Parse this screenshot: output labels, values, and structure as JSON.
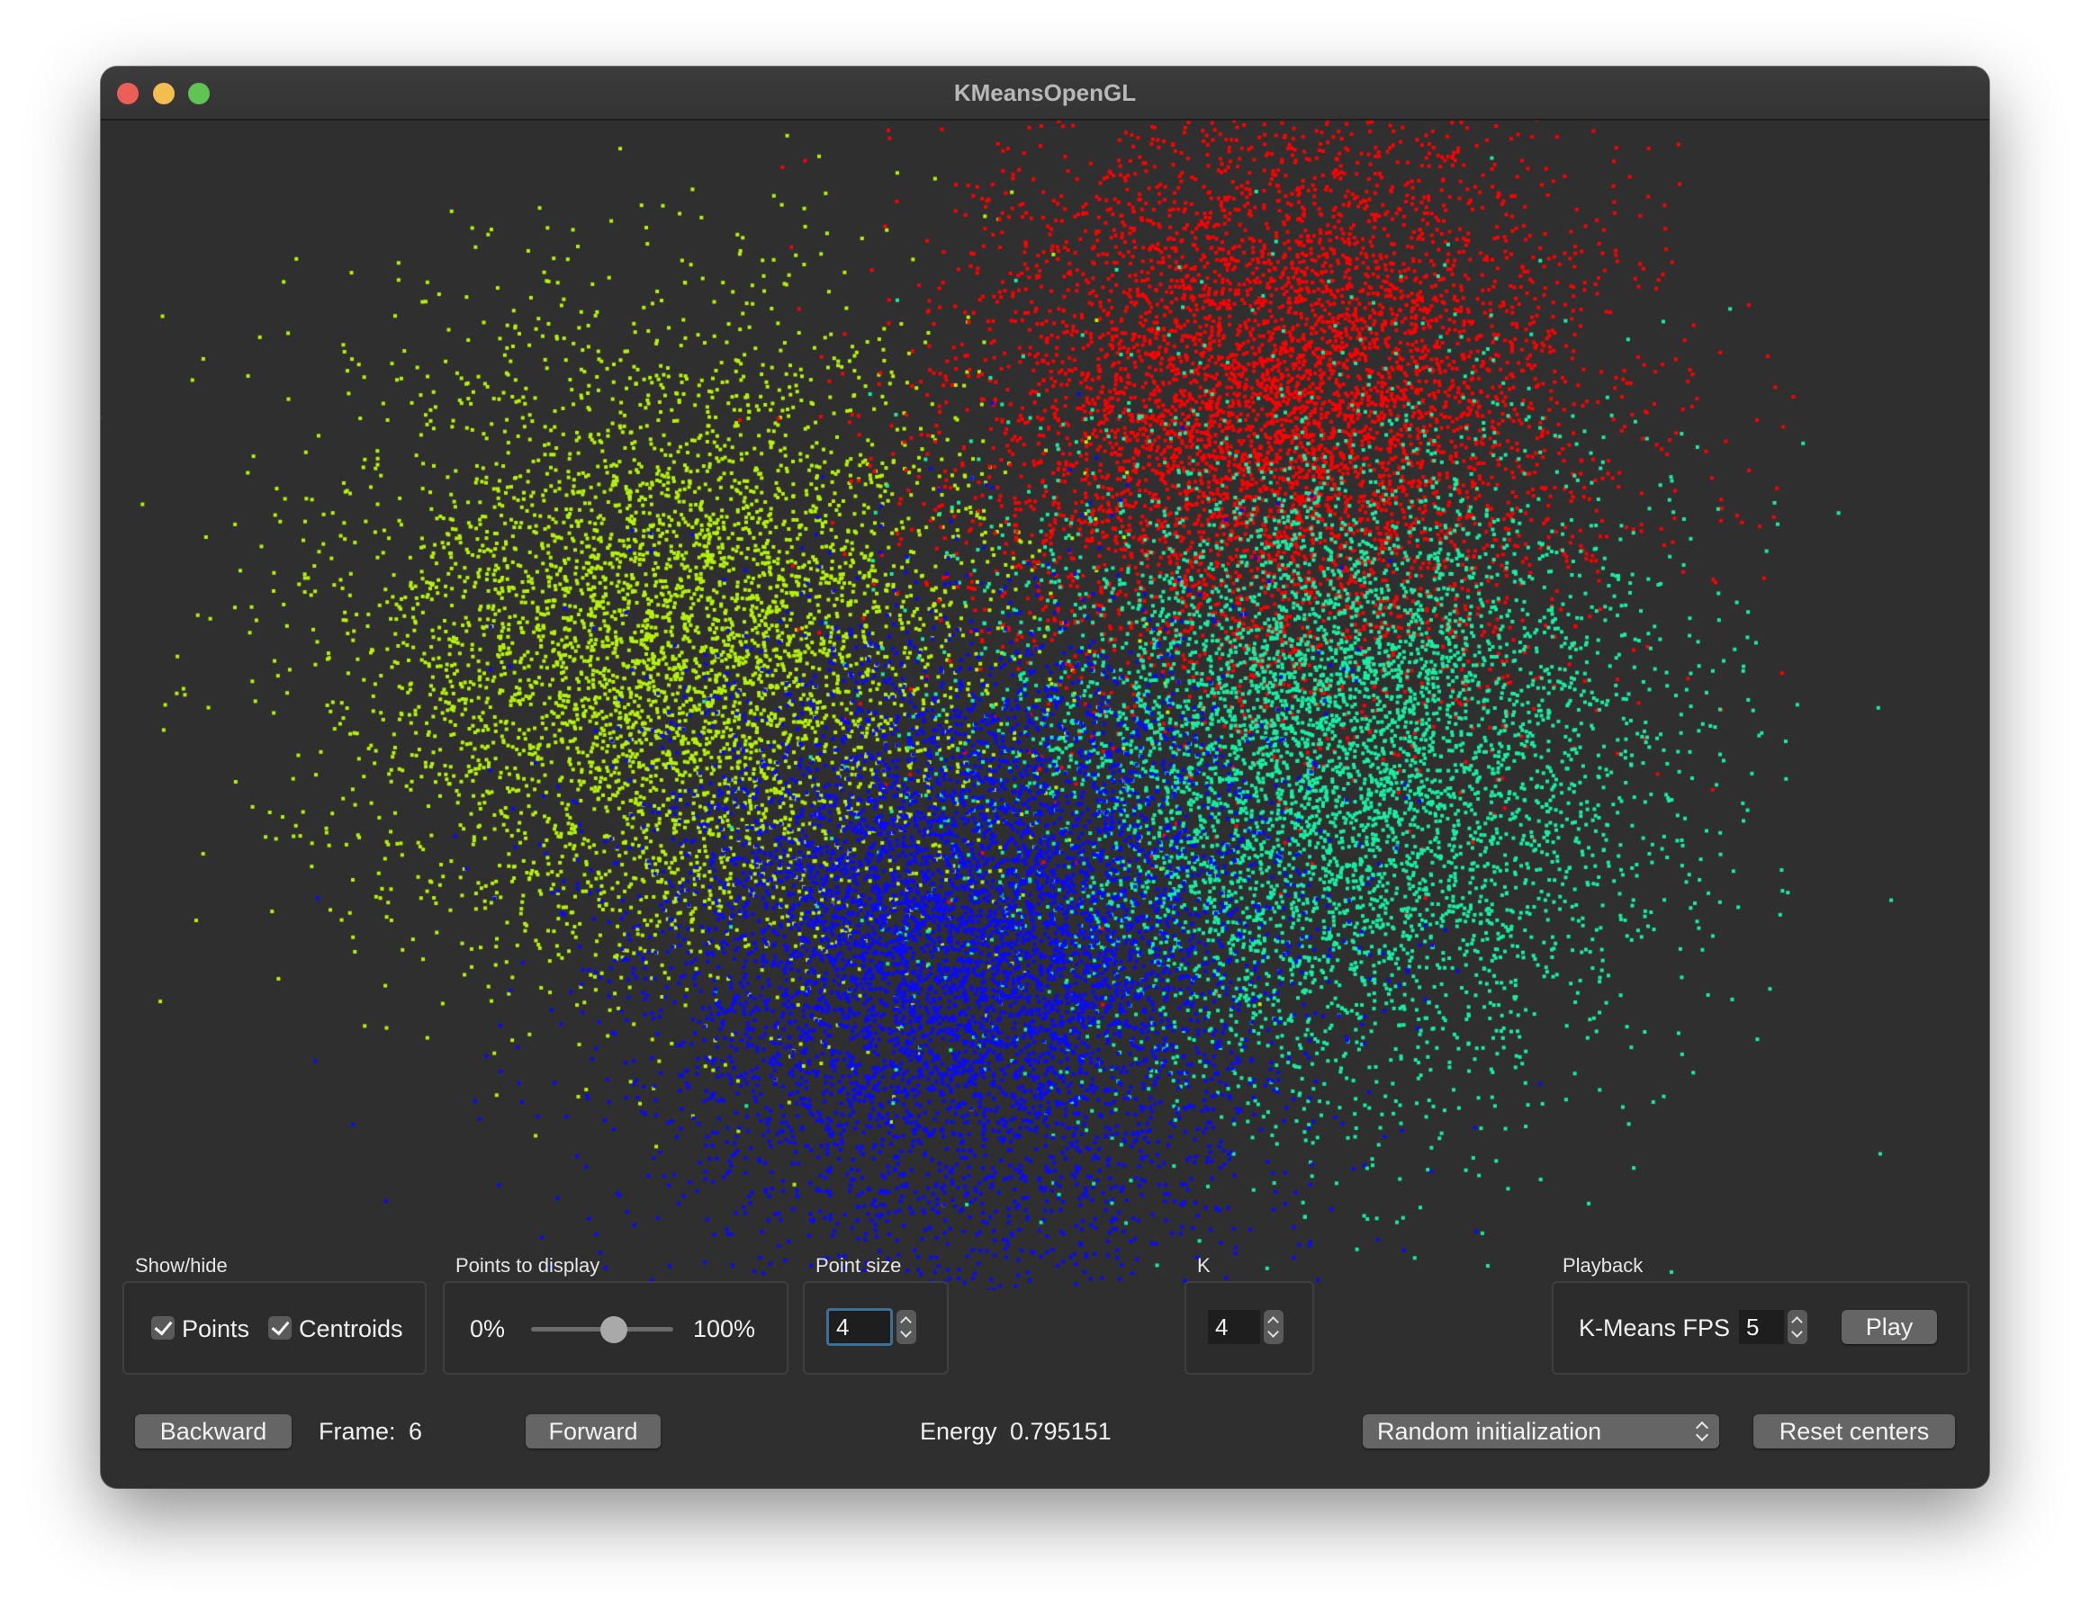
{
  "window": {
    "title": "KMeansOpenGL"
  },
  "clusters": [
    {
      "name": "yellow-green",
      "color": "#b5f20a",
      "center": [
        0.305,
        0.455
      ],
      "spread": 0.085,
      "count": 5000
    },
    {
      "name": "red",
      "color": "#ff0000",
      "center": [
        0.625,
        0.245
      ],
      "spread": 0.082,
      "count": 6000
    },
    {
      "name": "teal",
      "color": "#17eea2",
      "center": [
        0.645,
        0.545
      ],
      "spread": 0.088,
      "count": 6000
    },
    {
      "name": "blue",
      "color": "#0a0aff",
      "center": [
        0.455,
        0.705
      ],
      "spread": 0.083,
      "count": 6500
    }
  ],
  "showhide": {
    "label": "Show/hide",
    "points_label": "Points",
    "centroids_label": "Centroids"
  },
  "points_display": {
    "label": "Points to display",
    "min_label": "0%",
    "max_label": "100%",
    "value": 0.58
  },
  "point_size": {
    "label": "Point size",
    "value": "4"
  },
  "k": {
    "label": "K",
    "value": "4"
  },
  "playback": {
    "label": "Playback",
    "fps_label": "K-Means FPS",
    "fps_value": "5",
    "play_label": "Play"
  },
  "bottom": {
    "backward_label": "Backward",
    "frame_label": "Frame:",
    "frame_value": "6",
    "forward_label": "Forward",
    "energy_label": "Energy",
    "energy_value": "0.795151",
    "init_option": "Random initialization",
    "reset_label": "Reset centers"
  }
}
